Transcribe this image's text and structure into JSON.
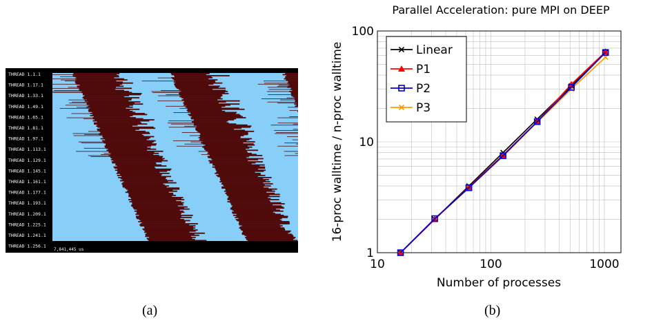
{
  "panel_a": {
    "caption": "(a)",
    "thread_labels": [
      "THREAD 1.1.1",
      "THREAD 1.17.1",
      "THREAD 1.33.1",
      "THREAD 1.49.1",
      "THREAD 1.65.1",
      "THREAD 1.81.1",
      "THREAD 1.97.1",
      "THREAD 1.113.1",
      "THREAD 1.129.1",
      "THREAD 1.145.1",
      "THREAD 1.161.1",
      "THREAD 1.177.1",
      "THREAD 1.193.1",
      "THREAD 1.209.1",
      "THREAD 1.225.1",
      "THREAD 1.241.1",
      "THREAD 1.256.1"
    ],
    "duration_label": "7,841,445 us",
    "colors": {
      "background": "#000000",
      "idle": "#87cef8",
      "busy": "#500a0a"
    }
  },
  "panel_b": {
    "caption": "(b)"
  },
  "chart_data": {
    "type": "line",
    "title": "Parallel Acceleration: pure MPI on DEEP",
    "xlabel": "Number of processes",
    "ylabel": "16-proc walltime / n-proc walltime",
    "xscale": "log",
    "yscale": "log",
    "xlim": [
      10,
      1400
    ],
    "ylim": [
      1,
      100
    ],
    "x_ticks": [
      10,
      100,
      1000
    ],
    "x_tick_labels": [
      "10",
      "100",
      "1000"
    ],
    "y_ticks": [
      1,
      10,
      100
    ],
    "y_tick_labels": [
      "1",
      "10",
      "100"
    ],
    "grid": true,
    "legend_position": "top-left",
    "x": [
      16,
      32,
      64,
      128,
      256,
      512,
      1024
    ],
    "series": [
      {
        "name": "Linear",
        "color": "#000000",
        "marker": "x",
        "values": [
          1,
          2,
          4,
          8,
          16,
          32,
          64
        ]
      },
      {
        "name": "P1",
        "color": "#ff0000",
        "marker": "triangle",
        "values": [
          1,
          2.0,
          3.9,
          7.6,
          15.2,
          33,
          65
        ]
      },
      {
        "name": "P2",
        "color": "#0000cc",
        "marker": "square",
        "values": [
          1,
          2.03,
          3.85,
          7.5,
          15.2,
          31,
          64
        ]
      },
      {
        "name": "P3",
        "color": "#ff9900",
        "marker": "x",
        "values": [
          1,
          2.0,
          3.85,
          7.4,
          15.0,
          30,
          58
        ]
      }
    ]
  }
}
